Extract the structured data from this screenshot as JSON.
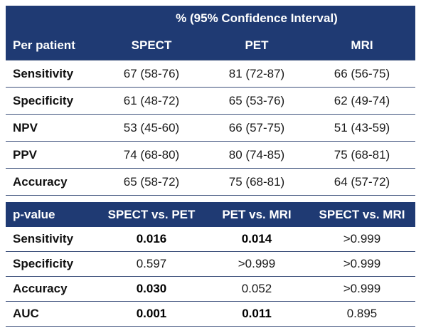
{
  "table1": {
    "title": "% (95% Confidence Interval)",
    "headers": [
      "Per patient",
      "SPECT",
      "PET",
      "MRI"
    ],
    "rows": [
      {
        "label": "Sensitivity",
        "values": [
          "67 (58-76)",
          "81 (72-87)",
          "66 (56-75)"
        ]
      },
      {
        "label": "Specificity",
        "values": [
          "61 (48-72)",
          "65 (53-76)",
          "62 (49-74)"
        ]
      },
      {
        "label": "NPV",
        "values": [
          "53 (45-60)",
          "66 (57-75)",
          "51 (43-59)"
        ]
      },
      {
        "label": "PPV",
        "values": [
          "74 (68-80)",
          "80 (74-85)",
          "75 (68-81)"
        ]
      },
      {
        "label": "Accuracy",
        "values": [
          "65 (58-72)",
          "75 (68-81)",
          "64 (57-72)"
        ]
      }
    ]
  },
  "table2": {
    "headers": [
      "p-value",
      "SPECT vs. PET",
      "PET vs. MRI",
      "SPECT vs. MRI"
    ],
    "rows": [
      {
        "label": "Sensitivity",
        "values": [
          "0.016",
          "0.014",
          ">0.999"
        ]
      },
      {
        "label": "Specificity",
        "values": [
          "0.597",
          ">0.999",
          ">0.999"
        ]
      },
      {
        "label": "Accuracy",
        "values": [
          "0.030",
          "0.052",
          ">0.999"
        ]
      },
      {
        "label": "AUC",
        "values": [
          "0.001",
          "0.011",
          "0.895"
        ]
      }
    ]
  },
  "colors": {
    "header_bg": "#1f3a73",
    "header_text": "#ffffff",
    "rule": "#3b4f7a"
  }
}
